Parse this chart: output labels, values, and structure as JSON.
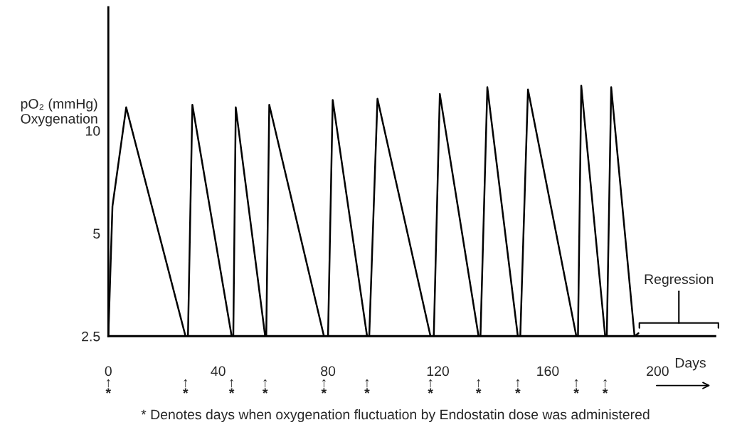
{
  "chart_data": {
    "type": "line",
    "xlabel": "Days",
    "ylabel": "pO₂ (mmHg)\nOxygenation",
    "x": [
      0,
      1.5,
      6.5,
      28.1,
      29,
      30.6,
      44.9,
      45.5,
      46.4,
      57.1,
      57.5,
      58.6,
      78.5,
      80,
      81.7,
      94.2,
      95,
      98,
      117.3,
      118.5,
      120.7,
      134.8,
      135.5,
      138,
      149.1,
      150,
      152.8,
      170.4,
      171,
      172.2,
      180.9,
      181.5,
      183.1,
      191.6,
      193
    ],
    "series": [
      {
        "color": "#000000",
        "values": [
          2.5,
          6,
          11.7,
          2.5,
          2.5,
          11.9,
          2.5,
          2.5,
          11.7,
          2.5,
          2.5,
          11.9,
          2.5,
          2.5,
          12.3,
          2.5,
          2.5,
          12.4,
          2.5,
          2.5,
          12.8,
          2.5,
          2.5,
          13.4,
          2.5,
          2.5,
          13.2,
          2.5,
          2.5,
          13.55,
          2.5,
          2.5,
          13.4,
          2.5,
          2.55
        ]
      }
    ],
    "log": "y",
    "ylim": [
      2.5,
      23
    ],
    "yticks": [
      2.5,
      5,
      10
    ],
    "xlim": [
      0,
      221
    ],
    "xticks": [
      0,
      40,
      80,
      120,
      160,
      200
    ],
    "grid": false,
    "legend": false,
    "marker": "none",
    "line_style": "solid",
    "annotations": [
      "Regression",
      "↑\n*",
      "↑\n*",
      "↑\n*",
      "↑\n*",
      "↑\n*",
      "↑\n*",
      "↑\n*",
      "↑\n*",
      "↑\n*",
      "↑\n*",
      "↑\n*",
      "* Denotes days when oxygenation fluctuation by Endostatin dose was administered"
    ]
  }
}
